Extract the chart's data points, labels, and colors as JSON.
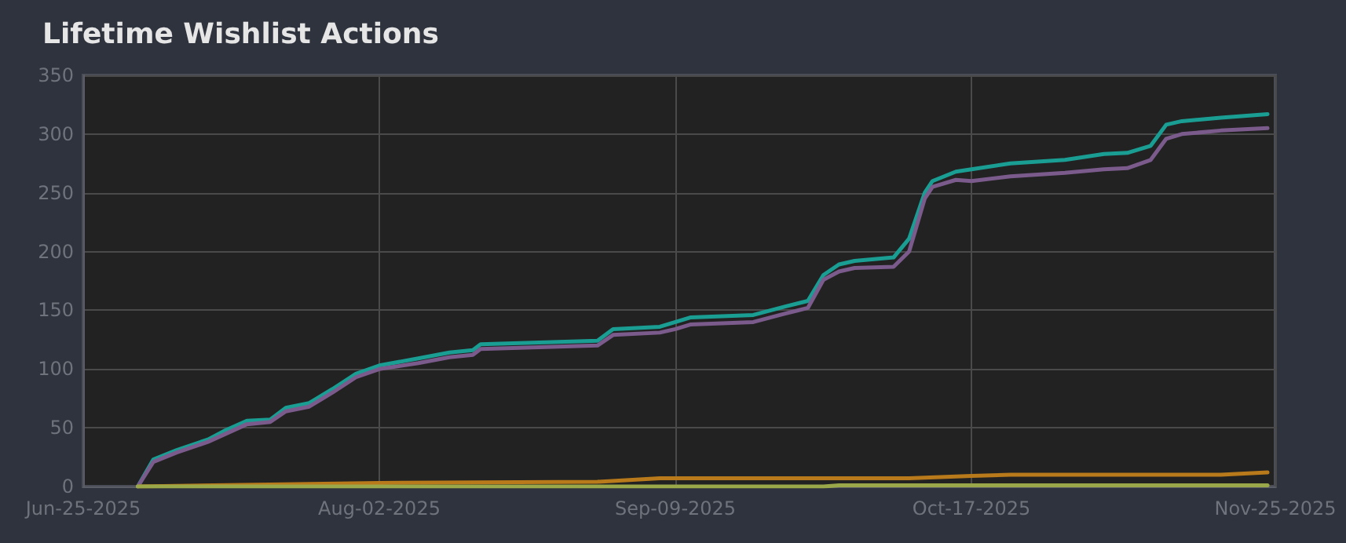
{
  "chart_data": {
    "type": "line",
    "title": "Lifetime Wishlist Actions",
    "xlim": [
      "2025-06-25",
      "2025-11-25"
    ],
    "xticks": [
      {
        "value": "2025-06-25",
        "label": "Jun-25-2025"
      },
      {
        "value": "2025-08-02",
        "label": "Aug-02-2025"
      },
      {
        "value": "2025-09-09",
        "label": "Sep-09-2025"
      },
      {
        "value": "2025-10-17",
        "label": "Oct-17-2025"
      },
      {
        "value": "2025-11-25",
        "label": "Nov-25-2025"
      }
    ],
    "ylim": [
      0,
      350
    ],
    "yticks": [
      0,
      50,
      100,
      150,
      200,
      250,
      300,
      350
    ],
    "grid": true,
    "marker": "none",
    "line_style": "solid",
    "series": [
      {
        "color": "#1a9e94",
        "x": [
          "2025-07-02",
          "2025-07-04",
          "2025-07-07",
          "2025-07-11",
          "2025-07-13",
          "2025-07-16",
          "2025-07-19",
          "2025-07-21",
          "2025-07-24",
          "2025-07-27",
          "2025-07-30",
          "2025-08-02",
          "2025-08-07",
          "2025-08-11",
          "2025-08-14",
          "2025-08-15",
          "2025-08-30",
          "2025-09-01",
          "2025-09-07",
          "2025-09-09",
          "2025-09-11",
          "2025-09-19",
          "2025-09-23",
          "2025-09-26",
          "2025-09-28",
          "2025-09-30",
          "2025-10-02",
          "2025-10-07",
          "2025-10-09",
          "2025-10-11",
          "2025-10-12",
          "2025-10-15",
          "2025-10-17",
          "2025-10-22",
          "2025-10-29",
          "2025-11-03",
          "2025-11-06",
          "2025-11-09",
          "2025-11-11",
          "2025-11-13",
          "2025-11-18",
          "2025-11-24"
        ],
        "values": [
          0,
          23,
          31,
          40,
          47,
          56,
          57,
          67,
          71,
          83,
          96,
          103,
          109,
          114,
          116,
          121,
          124,
          134,
          136,
          140,
          144,
          146,
          153,
          158,
          180,
          189,
          192,
          195,
          211,
          250,
          260,
          268,
          270,
          275,
          278,
          283,
          284,
          290,
          308,
          311,
          314,
          317
        ]
      },
      {
        "color": "#7b5a8c",
        "x": [
          "2025-07-02",
          "2025-07-04",
          "2025-07-07",
          "2025-07-11",
          "2025-07-13",
          "2025-07-16",
          "2025-07-19",
          "2025-07-21",
          "2025-07-24",
          "2025-07-27",
          "2025-07-30",
          "2025-08-02",
          "2025-08-07",
          "2025-08-11",
          "2025-08-14",
          "2025-08-15",
          "2025-08-30",
          "2025-09-01",
          "2025-09-07",
          "2025-09-09",
          "2025-09-11",
          "2025-09-19",
          "2025-09-23",
          "2025-09-26",
          "2025-09-28",
          "2025-09-30",
          "2025-10-02",
          "2025-10-07",
          "2025-10-09",
          "2025-10-11",
          "2025-10-12",
          "2025-10-15",
          "2025-10-17",
          "2025-10-22",
          "2025-10-29",
          "2025-11-03",
          "2025-11-06",
          "2025-11-09",
          "2025-11-11",
          "2025-11-13",
          "2025-11-18",
          "2025-11-24"
        ],
        "values": [
          0,
          21,
          29,
          38,
          44,
          53,
          55,
          64,
          68,
          80,
          93,
          100,
          105,
          110,
          112,
          117,
          120,
          129,
          131,
          134,
          138,
          140,
          147,
          152,
          176,
          183,
          186,
          187,
          200,
          245,
          255,
          261,
          260,
          264,
          267,
          270,
          271,
          278,
          296,
          300,
          303,
          305
        ]
      },
      {
        "color": "#b87a1a",
        "x": [
          "2025-07-02",
          "2025-08-02",
          "2025-08-30",
          "2025-09-07",
          "2025-09-09",
          "2025-10-09",
          "2025-10-17",
          "2025-10-22",
          "2025-11-18",
          "2025-11-24"
        ],
        "values": [
          0,
          3,
          4,
          7,
          7,
          7,
          9,
          10,
          10,
          12
        ]
      },
      {
        "color": "#9aa84a",
        "x": [
          "2025-07-02",
          "2025-09-28",
          "2025-09-30",
          "2025-11-24"
        ],
        "values": [
          0,
          0,
          1,
          1
        ]
      }
    ]
  }
}
